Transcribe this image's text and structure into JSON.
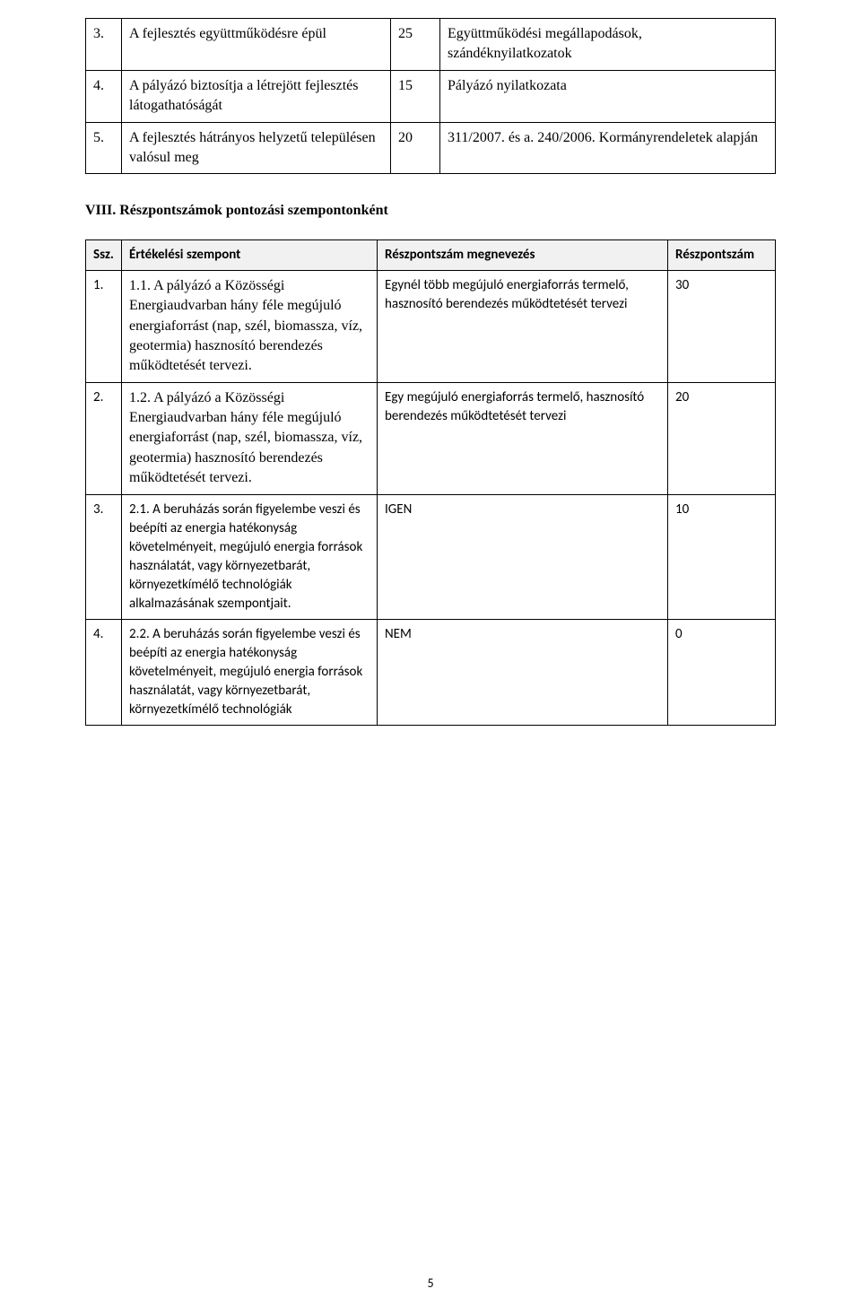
{
  "table1": {
    "rows": [
      {
        "num": "3.",
        "desc": "A fejlesztés együttműködésre épül",
        "points": "25",
        "justification": "Együttműködési megállapodások, szándéknyilatkozatok"
      },
      {
        "num": "4.",
        "desc": "A pályázó biztosítja a létrejött fejlesztés látogathatóságát",
        "points": "15",
        "justification": "Pályázó nyilatkozata"
      },
      {
        "num": "5.",
        "desc": "A fejlesztés hátrányos helyzetű településen valósul meg",
        "points": "20",
        "justification": "311/2007. és a. 240/2006. Kormányrendeletek alapján"
      }
    ]
  },
  "section_heading": "VIII. Részpontszámok pontozási szempontonként",
  "table2": {
    "headers": {
      "ssz": "Ssz.",
      "crit": "Értékelési szempont",
      "name": "Részpontszám megnevezés",
      "score": "Részpontszám"
    },
    "rows": [
      {
        "num": "1.",
        "crit": "1.1. A pályázó a Közösségi Energiaudvarban hány féle megújuló energiaforrást (nap, szél, biomassza, víz, geotermia) hasznosító berendezés működtetését tervezi.",
        "name": "Egynél több megújuló energiaforrás termelő, hasznosító berendezés működtetését tervezi",
        "score": "30"
      },
      {
        "num": "2.",
        "crit": "1.2. A pályázó a Közösségi Energiaudvarban hány féle megújuló energiaforrást (nap, szél, biomassza, víz, geotermia) hasznosító berendezés működtetését tervezi.",
        "name": "Egy megújuló energiaforrás termelő, hasznosító berendezés működtetését tervezi",
        "score": "20"
      },
      {
        "num": "3.",
        "crit": "2.1. A beruházás során figyelembe veszi és beépíti  az energia hatékonyság követelményeit, megújuló energia források használatát, vagy környezetbarát, környezetkímélő technológiák alkalmazásának szempontjait.",
        "name": "IGEN",
        "score": "10"
      },
      {
        "num": "4.",
        "crit": "2.2. A beruházás során figyelembe veszi és beépíti  az energia hatékonyság követelményeit, megújuló energia források használatát, vagy környezetbarát, környezetkímélő technológiák",
        "name": "NEM",
        "score": "0"
      }
    ]
  },
  "page_number": "5"
}
